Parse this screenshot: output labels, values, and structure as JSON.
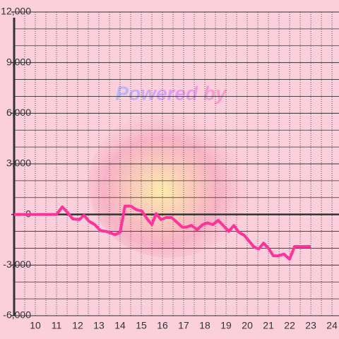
{
  "chart_data": {
    "type": "line",
    "watermark": "Powered by",
    "x": [
      9,
      11.0,
      11.27,
      11.5,
      11.77,
      12.07,
      12.3,
      12.53,
      12.8,
      13.07,
      13.33,
      13.57,
      13.77,
      14.0,
      14.23,
      14.5,
      14.77,
      15.03,
      15.27,
      15.5,
      15.7,
      15.93,
      16.17,
      16.43,
      16.67,
      16.93,
      17.13,
      17.37,
      17.63,
      17.9,
      18.13,
      18.37,
      18.63,
      18.9,
      19.13,
      19.37,
      19.6,
      19.87,
      20.1,
      20.3,
      20.53,
      20.77,
      21.0,
      21.23,
      21.47,
      21.73,
      22.0,
      22.23,
      22.47,
      22.73,
      23.0
    ],
    "series": [
      {
        "color": "#ff3399",
        "values": [
          0,
          0,
          450,
          150,
          -270,
          -300,
          -50,
          -400,
          -600,
          -950,
          -1000,
          -1100,
          -1200,
          -1050,
          500,
          500,
          280,
          200,
          -250,
          -600,
          50,
          -300,
          -180,
          -180,
          -450,
          -750,
          -750,
          -650,
          -900,
          -600,
          -500,
          -600,
          -350,
          -700,
          -1000,
          -650,
          -1050,
          -1250,
          -1600,
          -1900,
          -2050,
          -1700,
          -2000,
          -2450,
          -2450,
          -2350,
          -2650,
          -1900,
          -1900,
          -1900,
          -1900
        ]
      }
    ],
    "xlim": [
      9,
      24.33
    ],
    "xticks": [
      10,
      11,
      12,
      13,
      14,
      15,
      16,
      17,
      18,
      19,
      20,
      21,
      22,
      23,
      24
    ],
    "minor_xticks": [
      9.5,
      10.5,
      11.5,
      12.5,
      13.5,
      14.5,
      15.5,
      16.5,
      17.5,
      18.5,
      19.5,
      20.5,
      21.5,
      22.5,
      23.5
    ],
    "ylim": [
      -6000,
      12000
    ],
    "yticks": [
      {
        "value": -6000,
        "label": "-6,000"
      },
      {
        "value": -3000,
        "label": "-3,000"
      },
      0,
      {
        "value": 3000,
        "label": "3,000"
      },
      {
        "value": 6000,
        "label": "6,000"
      },
      {
        "value": 9000,
        "label": "9,000"
      },
      {
        "value": 12000,
        "label": "12,000"
      }
    ],
    "minor_yticks": [
      -5000,
      -4000,
      -2000,
      -1000,
      1000,
      2000,
      4000,
      5000,
      7000,
      8000,
      10000,
      11000
    ],
    "grid": true
  }
}
